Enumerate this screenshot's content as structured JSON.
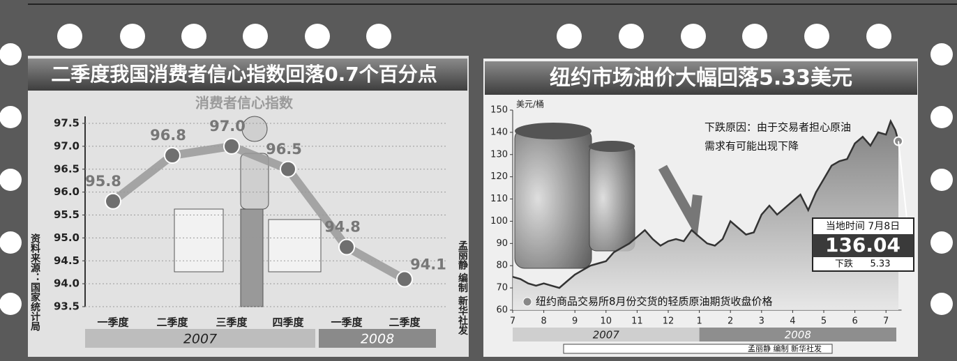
{
  "chart_data": [
    {
      "type": "line",
      "title": "二季度我国消费者信心指数回落0.7个百分点",
      "subtitle": "消费者信心指数",
      "categories": [
        "一季度",
        "二季度",
        "三季度",
        "四季度",
        "一季度",
        "二季度"
      ],
      "values": [
        95.8,
        96.8,
        97.0,
        96.5,
        94.8,
        94.1
      ],
      "value_labels": [
        "95.8",
        "96.8",
        "97.0",
        "96.5",
        "94.8",
        "94.1"
      ],
      "color": "#9a9a9a",
      "ylim": [
        93.5,
        97.5
      ],
      "yticks": [
        93.5,
        {
          "value": 94.0,
          "label": "94.0"
        },
        94.5,
        {
          "value": 95.0,
          "label": "95.0"
        },
        95.5,
        {
          "value": 96.0,
          "label": "96.0"
        },
        96.5,
        {
          "value": 97.0,
          "label": "97.0"
        },
        97.5
      ],
      "grid": true,
      "years": [
        "2007",
        "2008"
      ],
      "source": "资料来源：国家统计局",
      "credit": "孟丽静 编制 新华社发"
    },
    {
      "type": "area",
      "title": "纽约市场油价大幅回落5.33美元",
      "y_label": "美元/桶",
      "annotation": [
        "下跌原因：由于交易者担心原油",
        "需求有可能出现下降"
      ],
      "legend": "纽约商品交易所8月份交货的轻质原油期货收盘价格",
      "x": [
        0,
        0.25,
        0.5,
        0.75,
        1,
        1.25,
        1.5,
        1.75,
        2,
        2.25,
        2.5,
        2.75,
        3,
        3.25,
        3.5,
        3.75,
        4,
        4.25,
        4.5,
        4.75,
        5,
        5.25,
        5.5,
        5.75,
        6,
        6.25,
        6.5,
        6.75,
        7,
        7.25,
        7.5,
        7.75,
        8,
        8.25,
        8.5,
        8.75,
        9,
        9.25,
        9.5,
        9.75,
        10,
        10.25,
        10.5,
        10.75,
        11,
        11.25,
        11.5,
        11.75,
        12,
        12.15,
        12.3,
        12.4
      ],
      "series": [
        {
          "name": "纽约商品交易所8月份交货的轻质原油期货收盘价格",
          "color": "#333333",
          "values": [
            75,
            74,
            72,
            71,
            72,
            71,
            70,
            73,
            76,
            78,
            80,
            81,
            82,
            86,
            88,
            90,
            93,
            96,
            92,
            89,
            91,
            92,
            91,
            96,
            93,
            90,
            89,
            92,
            100,
            97,
            94,
            95,
            103,
            107,
            103,
            106,
            109,
            112,
            105,
            113,
            119,
            125,
            127,
            128,
            135,
            138,
            134,
            140,
            139,
            145,
            141,
            136.04
          ]
        }
      ],
      "xlim": [
        0,
        12.5
      ],
      "xticks": [
        {
          "value": 0,
          "label": "7"
        },
        {
          "value": 1,
          "label": "8"
        },
        {
          "value": 2,
          "label": "9"
        },
        {
          "value": 3,
          "label": "10"
        },
        {
          "value": 4,
          "label": "11"
        },
        {
          "value": 5,
          "label": "12"
        },
        {
          "value": 6,
          "label": "1"
        },
        {
          "value": 7,
          "label": "2"
        },
        {
          "value": 8,
          "label": "3"
        },
        {
          "value": 9,
          "label": "4"
        },
        {
          "value": 10,
          "label": "5"
        },
        {
          "value": 11,
          "label": "6"
        },
        {
          "value": 12,
          "label": "7"
        }
      ],
      "ylim": [
        60,
        150
      ],
      "yticks": [
        60,
        70,
        80,
        90,
        100,
        110,
        120,
        130,
        140,
        150
      ],
      "callout": {
        "date": "当地时间 7月8日",
        "price": 136.04,
        "change_label": "下跌",
        "change": 5.33
      },
      "years": [
        "2007",
        "2008"
      ],
      "credit": "孟丽静 编制 新华社发"
    }
  ]
}
